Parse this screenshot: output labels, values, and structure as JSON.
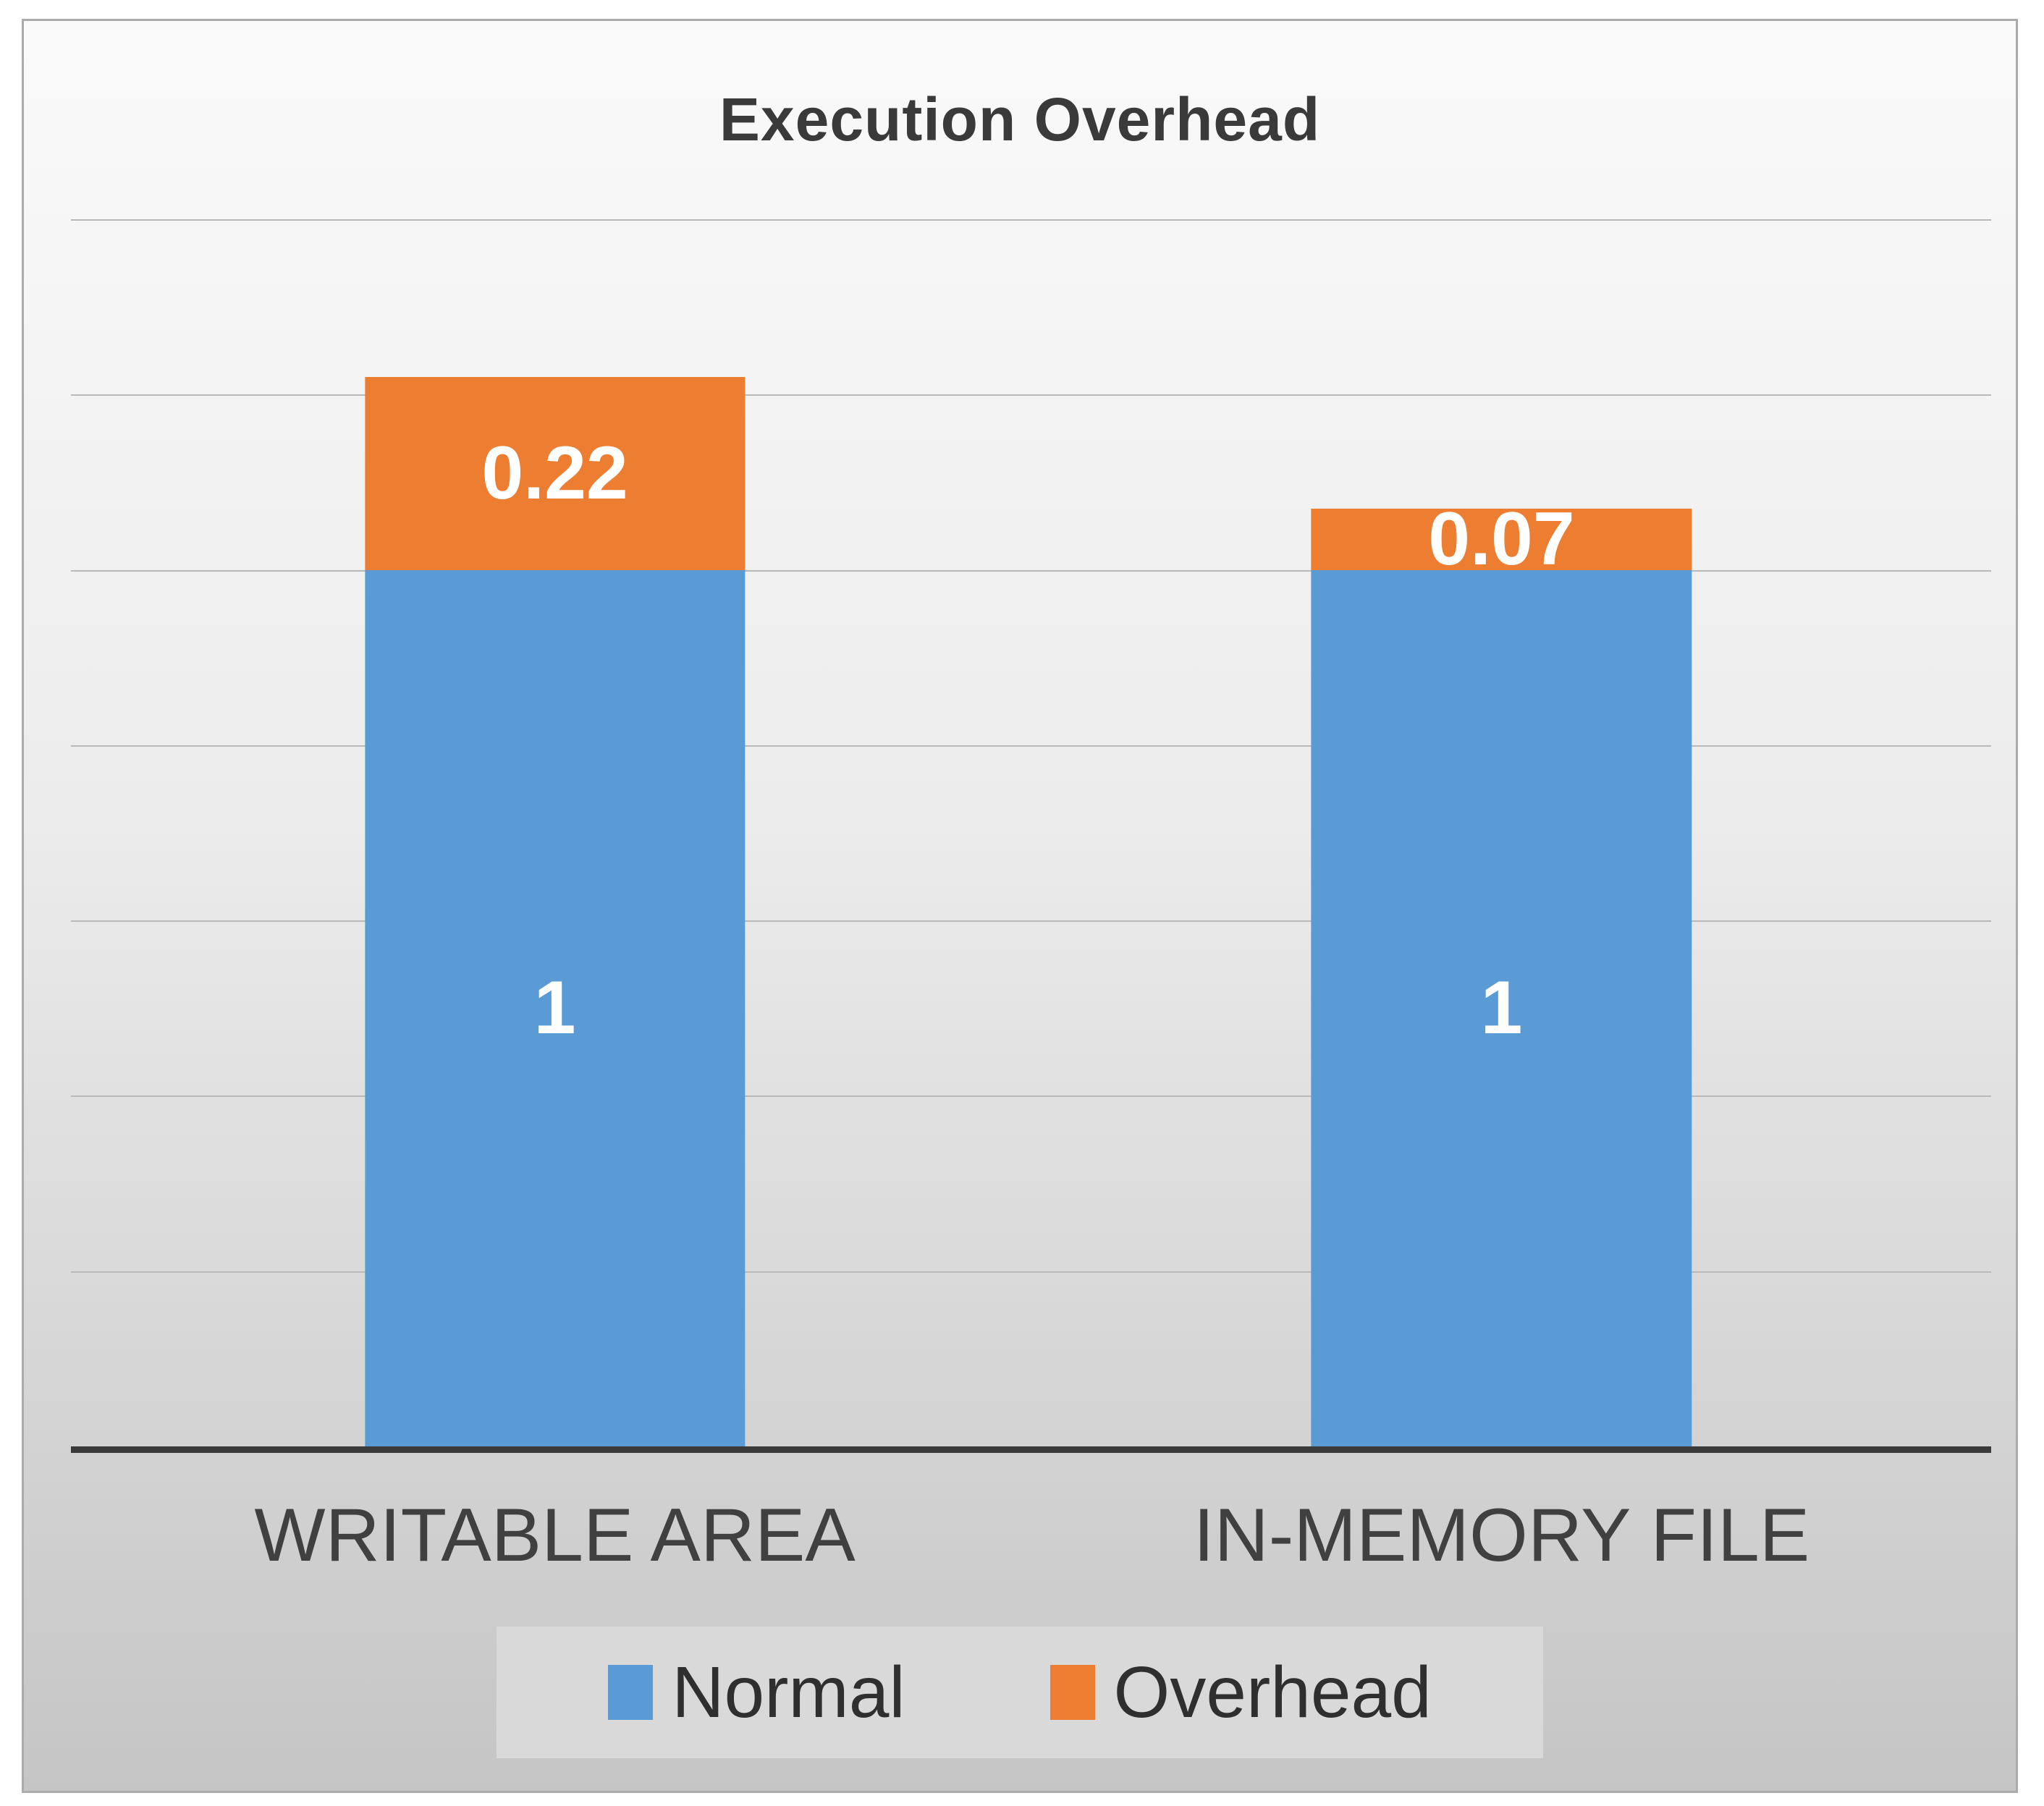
{
  "chart_data": {
    "type": "bar",
    "stacked": true,
    "title": "Execution Overhead",
    "categories": [
      "WRITABLE AREA",
      "IN-MEMORY FILE"
    ],
    "series": [
      {
        "name": "Normal",
        "color": "#5B9BD5",
        "values": [
          1,
          1
        ],
        "labels": [
          "1",
          "1"
        ]
      },
      {
        "name": "Overhead",
        "color": "#ED7D31",
        "values": [
          0.22,
          0.07
        ],
        "labels": [
          "0.22",
          "0.07"
        ]
      }
    ],
    "totals": [
      1.22,
      1.07
    ],
    "ylim": [
      0,
      1.4
    ],
    "gridline_step": 0.2,
    "grid": true,
    "y_axis_labels_visible": false,
    "x_axis_line": true,
    "legend_position": "bottom",
    "data_label_color": "#FFFFFF"
  },
  "colors": {
    "title_text": "#3A3A3A",
    "category_text": "#404040",
    "legend_text": "#2F2F2F",
    "data_label_text": "#FFFFFF",
    "gridline": "#B9B9B9",
    "axis_line": "#3A3A3A",
    "panel_border": "#ABABAB",
    "panel_bg_top": "#FAFAFA",
    "panel_bg_bottom": "#C5C5C5",
    "legend_bg": "#D9D9D9"
  }
}
